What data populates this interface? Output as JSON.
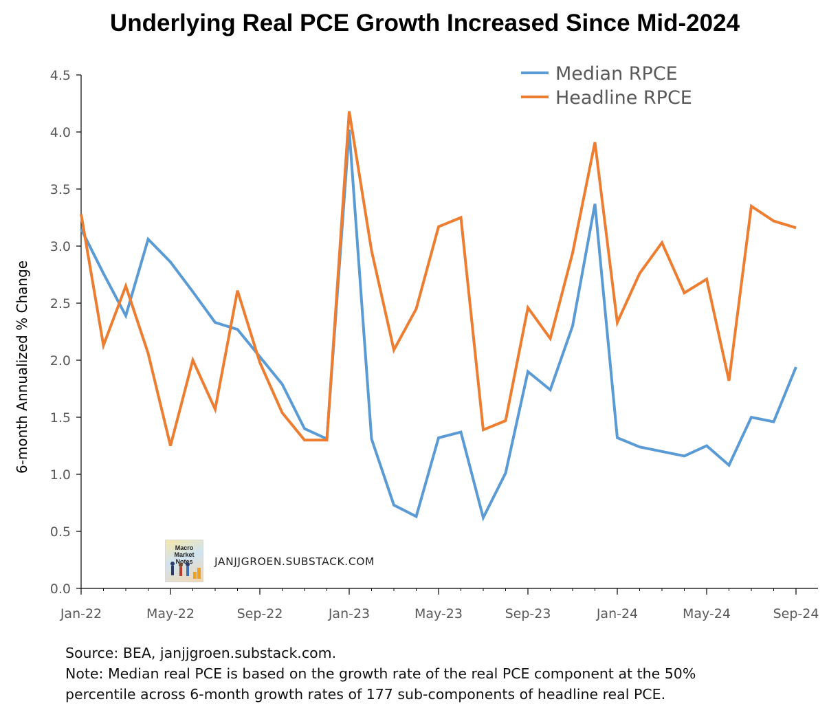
{
  "header": {
    "title": "Underlying Real PCE Growth Increased Since Mid-2024"
  },
  "watermark": {
    "logo_text": "Macro Market Notes",
    "site": "JANJJGROEN.SUBSTACK.COM"
  },
  "footer": {
    "source": "Source: BEA, janjjgroen.substack.com.",
    "note_line1": "Note: Median real PCE is based on the growth rate of the real PCE component at the 50%",
    "note_line2": "percentile across 6-month growth rates of 177 sub-components of headline real PCE."
  },
  "colors": {
    "median": "#5b9bd5",
    "headline": "#ed7d31",
    "axis": "#000000",
    "tick_text": "#595959"
  },
  "chart_data": {
    "type": "line",
    "title": "Underlying Real PCE Growth Increased Since Mid-2024",
    "xlabel": "",
    "ylabel": "6-month Annualized % Change",
    "ylim": [
      0,
      4.5
    ],
    "yticks": [
      "0.0",
      "0.5",
      "1.0",
      "1.5",
      "2.0",
      "2.5",
      "3.0",
      "3.5",
      "4.0",
      "4.5"
    ],
    "xtick_labels": [
      "Jan-22",
      "May-22",
      "Sep-22",
      "Jan-23",
      "May-23",
      "Sep-23",
      "Jan-24",
      "May-24",
      "Sep-24"
    ],
    "xtick_positions": [
      0,
      4,
      8,
      12,
      16,
      20,
      24,
      28,
      32
    ],
    "grid": false,
    "legend_position": "top-right",
    "x": [
      "Jan-22",
      "Feb-22",
      "Mar-22",
      "Apr-22",
      "May-22",
      "Jun-22",
      "Jul-22",
      "Aug-22",
      "Sep-22",
      "Oct-22",
      "Nov-22",
      "Dec-22",
      "Jan-23",
      "Feb-23",
      "Mar-23",
      "Apr-23",
      "May-23",
      "Jun-23",
      "Jul-23",
      "Aug-23",
      "Sep-23",
      "Oct-23",
      "Nov-23",
      "Dec-23",
      "Jan-24",
      "Feb-24",
      "Mar-24",
      "Apr-24",
      "May-24",
      "Jun-24",
      "Jul-24",
      "Aug-24",
      "Sep-24"
    ],
    "series": [
      {
        "name": "Median RPCE",
        "color": "#5b9bd5",
        "values": [
          3.15,
          2.76,
          2.39,
          3.06,
          2.86,
          2.6,
          2.33,
          2.27,
          2.03,
          1.79,
          1.4,
          1.31,
          4.02,
          1.31,
          0.73,
          0.63,
          1.32,
          1.37,
          0.62,
          1.01,
          1.9,
          1.74,
          2.3,
          3.37,
          1.32,
          1.24,
          1.2,
          1.16,
          1.25,
          1.08,
          1.5,
          1.46,
          1.94
        ]
      },
      {
        "name": "Headline RPCE",
        "color": "#ed7d31",
        "values": [
          3.28,
          2.13,
          2.65,
          2.06,
          1.25,
          2.0,
          1.57,
          2.61,
          1.98,
          1.54,
          1.3,
          1.3,
          4.18,
          2.96,
          2.09,
          2.45,
          3.17,
          3.25,
          1.39,
          1.47,
          2.46,
          2.19,
          2.94,
          3.91,
          2.33,
          2.76,
          3.03,
          2.59,
          2.71,
          1.82,
          3.35,
          3.22,
          3.16
        ]
      }
    ]
  }
}
